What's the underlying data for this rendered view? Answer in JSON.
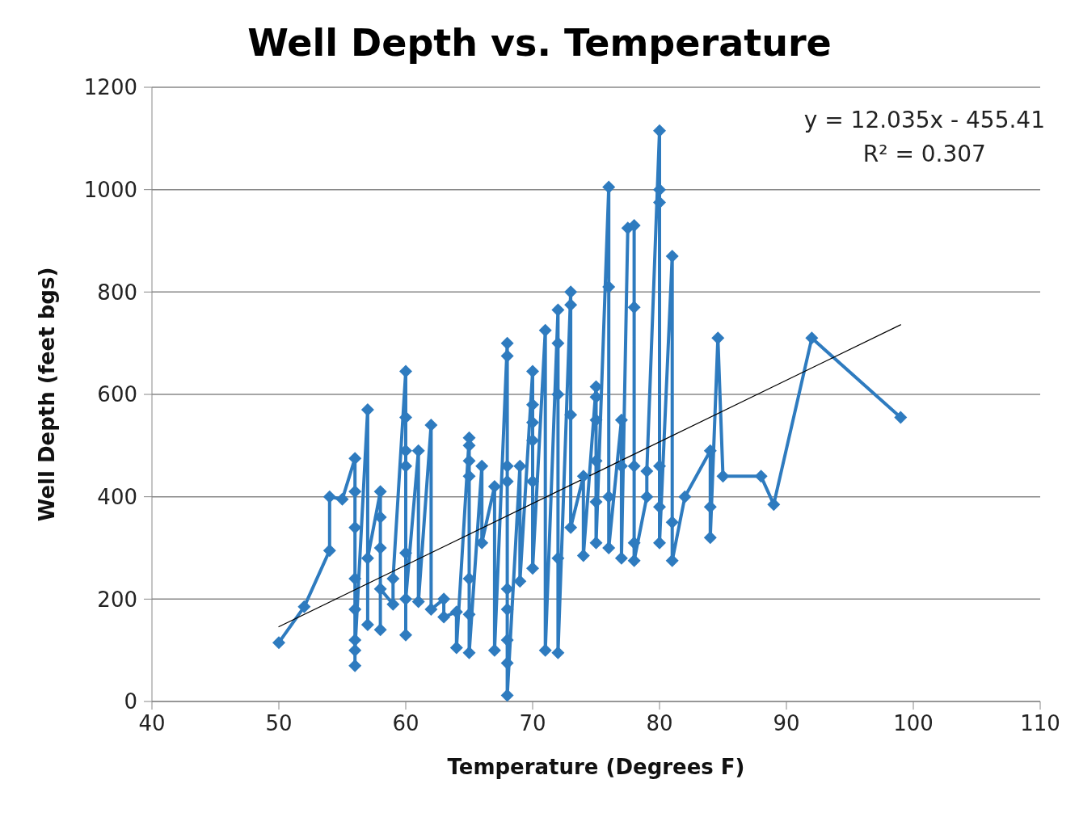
{
  "chart_data": {
    "type": "line",
    "title": "Well Depth vs. Temperature",
    "xlabel": "Temperature (Degrees F)",
    "ylabel": "Well Depth (feet bgs)",
    "annotations": [
      "y = 12.035x - 455.41",
      "R² = 0.307"
    ],
    "xlim": [
      40,
      110
    ],
    "xticks": [
      40,
      50,
      60,
      70,
      80,
      90,
      100,
      110
    ],
    "ylim": [
      0,
      1200
    ],
    "yticks": [
      0,
      200,
      400,
      600,
      800,
      1000,
      1200
    ],
    "grid": "y",
    "series": [
      {
        "color": "#2e7bbf",
        "marker": "diamond",
        "line_style": "solid",
        "x": [
          50,
          52,
          54,
          54,
          55,
          56,
          56,
          56,
          56,
          56,
          56,
          56,
          56,
          57,
          57,
          57,
          58,
          58,
          58,
          58,
          58,
          59,
          59,
          60,
          60,
          60,
          60,
          60,
          60,
          60,
          61,
          61,
          62,
          62,
          63,
          63,
          64,
          64,
          65,
          65,
          65,
          65,
          65,
          65,
          65,
          66,
          66,
          67,
          67,
          68,
          68,
          68,
          68,
          68,
          68,
          68,
          68,
          68,
          69,
          69,
          70,
          70,
          70,
          70,
          70,
          70,
          71,
          71,
          72,
          72,
          72,
          72,
          72,
          73,
          73,
          73,
          73,
          74,
          74,
          75,
          75,
          75,
          75,
          75,
          75,
          76,
          76,
          76,
          76,
          77,
          77,
          77,
          77.5,
          78,
          78,
          78,
          78,
          78,
          79,
          79,
          80,
          80,
          80,
          80,
          80,
          80,
          81,
          81,
          81,
          82,
          84,
          84,
          84,
          84.6,
          85,
          88,
          89,
          92,
          99
        ],
        "values": [
          115,
          185,
          295,
          400,
          395,
          475,
          410,
          340,
          240,
          180,
          120,
          70,
          100,
          570,
          150,
          280,
          410,
          360,
          300,
          140,
          220,
          190,
          240,
          645,
          555,
          490,
          460,
          290,
          130,
          200,
          490,
          195,
          540,
          180,
          200,
          165,
          175,
          105,
          515,
          500,
          470,
          440,
          240,
          170,
          95,
          460,
          310,
          420,
          100,
          700,
          675,
          460,
          430,
          220,
          180,
          120,
          75,
          12,
          460,
          235,
          645,
          580,
          545,
          510,
          430,
          260,
          725,
          100,
          765,
          700,
          600,
          280,
          95,
          800,
          775,
          560,
          340,
          440,
          285,
          615,
          595,
          550,
          470,
          390,
          310,
          1005,
          810,
          400,
          300,
          550,
          460,
          280,
          925,
          930,
          770,
          460,
          310,
          275,
          400,
          450,
          1115,
          1000,
          975,
          460,
          380,
          310,
          870,
          350,
          275,
          400,
          490,
          380,
          320,
          710,
          440,
          440,
          385,
          710,
          555
        ]
      },
      {
        "color": "#000000",
        "marker": "none",
        "line_style": "solid",
        "x": [
          50,
          99
        ],
        "values": [
          146,
          736
        ]
      }
    ]
  }
}
